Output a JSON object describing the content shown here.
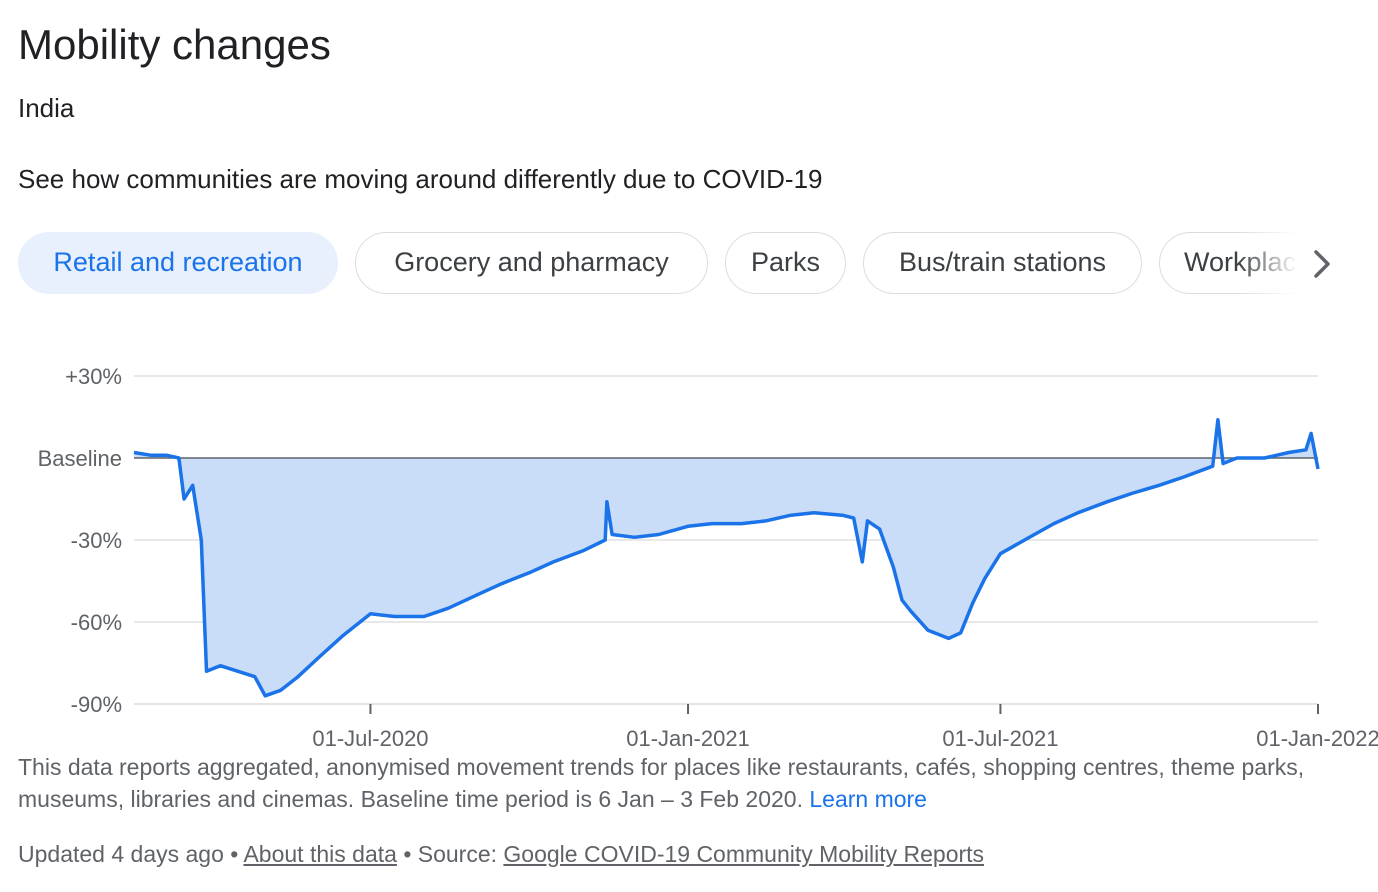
{
  "header": {
    "title": "Mobility changes",
    "region": "India",
    "description": "See how communities are moving around differently due to COVID-19"
  },
  "chips": [
    {
      "label": "Retail and recreation",
      "selected": true
    },
    {
      "label": "Grocery and pharmacy",
      "selected": false
    },
    {
      "label": "Parks",
      "selected": false
    },
    {
      "label": "Bus/train stations",
      "selected": false
    },
    {
      "label": "Workplaces",
      "selected": false
    }
  ],
  "icons": {
    "next": "chevron-right-icon"
  },
  "colors": {
    "line": "#1a73e8",
    "fill": "#c9dcf8",
    "baseline": "#5f6368",
    "grid": "#e0e0e0",
    "chip_selected_bg": "#e8f0fe",
    "chip_selected_text": "#1a73e8"
  },
  "chart_data": {
    "type": "area",
    "ylim": [
      -90,
      30
    ],
    "y_ticks": [
      {
        "value": 30,
        "label": "+30%"
      },
      {
        "value": 0,
        "label": "Baseline"
      },
      {
        "value": -30,
        "label": "-30%"
      },
      {
        "value": -60,
        "label": "-60%"
      },
      {
        "value": -90,
        "label": "-90%"
      }
    ],
    "xlim": [
      "2020-02-15",
      "2022-01-01"
    ],
    "x_ticks": [
      {
        "value": "2020-07-01",
        "label": "01-Jul-2020"
      },
      {
        "value": "2021-01-01",
        "label": "01-Jan-2021"
      },
      {
        "value": "2021-07-01",
        "label": "01-Jul-2021"
      },
      {
        "value": "2022-01-01",
        "label": "01-Jan-2022"
      }
    ],
    "grid": true,
    "series": [
      {
        "points": [
          [
            "2020-02-15",
            2
          ],
          [
            "2020-02-25",
            1
          ],
          [
            "2020-03-05",
            1
          ],
          [
            "2020-03-12",
            0
          ],
          [
            "2020-03-15",
            -15
          ],
          [
            "2020-03-20",
            -10
          ],
          [
            "2020-03-25",
            -30
          ],
          [
            "2020-03-28",
            -78
          ],
          [
            "2020-04-05",
            -76
          ],
          [
            "2020-04-15",
            -78
          ],
          [
            "2020-04-25",
            -80
          ],
          [
            "2020-05-01",
            -87
          ],
          [
            "2020-05-10",
            -85
          ],
          [
            "2020-05-20",
            -80
          ],
          [
            "2020-06-01",
            -73
          ],
          [
            "2020-06-15",
            -65
          ],
          [
            "2020-07-01",
            -57
          ],
          [
            "2020-07-15",
            -58
          ],
          [
            "2020-08-01",
            -58
          ],
          [
            "2020-08-15",
            -55
          ],
          [
            "2020-09-01",
            -50
          ],
          [
            "2020-09-15",
            -46
          ],
          [
            "2020-10-01",
            -42
          ],
          [
            "2020-10-15",
            -38
          ],
          [
            "2020-11-01",
            -34
          ],
          [
            "2020-11-14",
            -30
          ],
          [
            "2020-11-15",
            -16
          ],
          [
            "2020-11-18",
            -28
          ],
          [
            "2020-12-01",
            -29
          ],
          [
            "2020-12-15",
            -28
          ],
          [
            "2021-01-01",
            -25
          ],
          [
            "2021-01-15",
            -24
          ],
          [
            "2021-02-01",
            -24
          ],
          [
            "2021-02-15",
            -23
          ],
          [
            "2021-03-01",
            -21
          ],
          [
            "2021-03-15",
            -20
          ],
          [
            "2021-04-01",
            -21
          ],
          [
            "2021-04-07",
            -22
          ],
          [
            "2021-04-12",
            -38
          ],
          [
            "2021-04-15",
            -23
          ],
          [
            "2021-04-22",
            -26
          ],
          [
            "2021-04-30",
            -40
          ],
          [
            "2021-05-05",
            -52
          ],
          [
            "2021-05-10",
            -56
          ],
          [
            "2021-05-20",
            -63
          ],
          [
            "2021-06-01",
            -66
          ],
          [
            "2021-06-08",
            -64
          ],
          [
            "2021-06-15",
            -53
          ],
          [
            "2021-06-22",
            -44
          ],
          [
            "2021-07-01",
            -35
          ],
          [
            "2021-07-15",
            -30
          ],
          [
            "2021-08-01",
            -24
          ],
          [
            "2021-08-15",
            -20
          ],
          [
            "2021-09-01",
            -16
          ],
          [
            "2021-09-15",
            -13
          ],
          [
            "2021-10-01",
            -10
          ],
          [
            "2021-10-15",
            -7
          ],
          [
            "2021-11-01",
            -3
          ],
          [
            "2021-11-04",
            14
          ],
          [
            "2021-11-07",
            -2
          ],
          [
            "2021-11-15",
            0
          ],
          [
            "2021-12-01",
            0
          ],
          [
            "2021-12-15",
            2
          ],
          [
            "2021-12-25",
            3
          ],
          [
            "2021-12-28",
            9
          ],
          [
            "2022-01-01",
            -4
          ]
        ]
      }
    ]
  },
  "footnote": {
    "text": "This data reports aggregated, anonymised movement trends for places like restaurants, cafés, shopping centres, theme parks, museums, libraries and cinemas. Baseline time period is 6 Jan – 3 Feb 2020.",
    "learn_more": "Learn more"
  },
  "updated": {
    "prefix": "Updated 4 days ago",
    "sep1": "•",
    "about_link": "About this data",
    "source_prefix": "• Source:",
    "source_link": "Google COVID-19 Community Mobility Reports"
  }
}
